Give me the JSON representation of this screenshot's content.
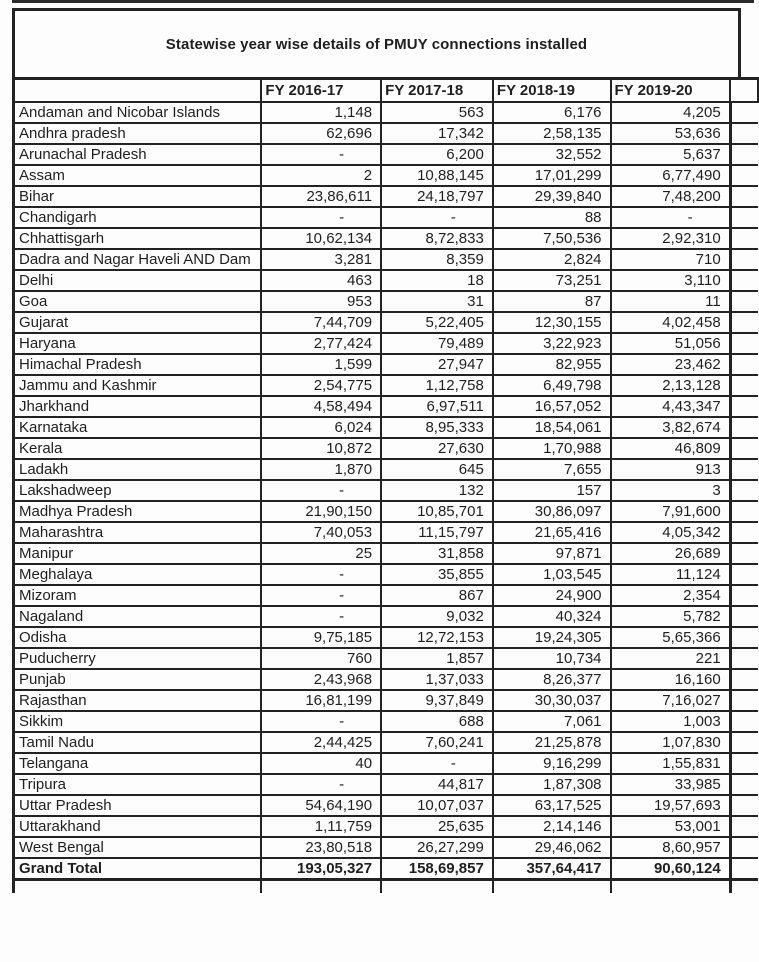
{
  "title": "Statewise year wise details of PMUY connections installed",
  "chart_data": {
    "type": "table",
    "title": "Statewise year wise details of PMUY connections installed",
    "columns": [
      "FY 2016-17",
      "FY 2017-18",
      "FY 2018-19",
      "FY 2019-20"
    ],
    "rows": [
      [
        "Andaman and Nicobar Islands",
        "1,148",
        "563",
        "6,176",
        "4,205"
      ],
      [
        "Andhra pradesh",
        "62,696",
        "17,342",
        "2,58,135",
        "53,636"
      ],
      [
        "Arunachal Pradesh",
        "-",
        "6,200",
        "32,552",
        "5,637"
      ],
      [
        "Assam",
        "2",
        "10,88,145",
        "17,01,299",
        "6,77,490"
      ],
      [
        "Bihar",
        "23,86,611",
        "24,18,797",
        "29,39,840",
        "7,48,200"
      ],
      [
        "Chandigarh",
        "-",
        "-",
        "88",
        "-"
      ],
      [
        "Chhattisgarh",
        "10,62,134",
        "8,72,833",
        "7,50,536",
        "2,92,310"
      ],
      [
        "Dadra and  Nagar Haveli AND Dam",
        "3,281",
        "8,359",
        "2,824",
        "710"
      ],
      [
        "Delhi",
        "463",
        "18",
        "73,251",
        "3,110"
      ],
      [
        "Goa",
        "953",
        "31",
        "87",
        "11"
      ],
      [
        "Gujarat",
        "7,44,709",
        "5,22,405",
        "12,30,155",
        "4,02,458"
      ],
      [
        "Haryana",
        "2,77,424",
        "79,489",
        "3,22,923",
        "51,056"
      ],
      [
        "Himachal Pradesh",
        "1,599",
        "27,947",
        "82,955",
        "23,462"
      ],
      [
        "Jammu and Kashmir",
        "2,54,775",
        "1,12,758",
        "6,49,798",
        "2,13,128"
      ],
      [
        "Jharkhand",
        "4,58,494",
        "6,97,511",
        "16,57,052",
        "4,43,347"
      ],
      [
        "Karnataka",
        "6,024",
        "8,95,333",
        "18,54,061",
        "3,82,674"
      ],
      [
        "Kerala",
        "10,872",
        "27,630",
        "1,70,988",
        "46,809"
      ],
      [
        "Ladakh",
        "1,870",
        "645",
        "7,655",
        "913"
      ],
      [
        "Lakshadweep",
        "-",
        "132",
        "157",
        "3"
      ],
      [
        "Madhya Pradesh",
        "21,90,150",
        "10,85,701",
        "30,86,097",
        "7,91,600"
      ],
      [
        "Maharashtra",
        "7,40,053",
        "11,15,797",
        "21,65,416",
        "4,05,342"
      ],
      [
        "Manipur",
        "25",
        "31,858",
        "97,871",
        "26,689"
      ],
      [
        "Meghalaya",
        "-",
        "35,855",
        "1,03,545",
        "11,124"
      ],
      [
        "Mizoram",
        "-",
        "867",
        "24,900",
        "2,354"
      ],
      [
        "Nagaland",
        "-",
        "9,032",
        "40,324",
        "5,782"
      ],
      [
        "Odisha",
        "9,75,185",
        "12,72,153",
        "19,24,305",
        "5,65,366"
      ],
      [
        "Puducherry",
        "760",
        "1,857",
        "10,734",
        "221"
      ],
      [
        "Punjab",
        "2,43,968",
        "1,37,033",
        "8,26,377",
        "16,160"
      ],
      [
        "Rajasthan",
        "16,81,199",
        "9,37,849",
        "30,30,037",
        "7,16,027"
      ],
      [
        "Sikkim",
        "-",
        "688",
        "7,061",
        "1,003"
      ],
      [
        "Tamil Nadu",
        "2,44,425",
        "7,60,241",
        "21,25,878",
        "1,07,830"
      ],
      [
        "Telangana",
        "40",
        "-",
        "9,16,299",
        "1,55,831"
      ],
      [
        "Tripura",
        "-",
        "44,817",
        "1,87,308",
        "33,985"
      ],
      [
        "Uttar Pradesh",
        "54,64,190",
        "10,07,037",
        "63,17,525",
        "19,57,693"
      ],
      [
        "Uttarakhand",
        "1,11,759",
        "25,635",
        "2,14,146",
        "53,001"
      ],
      [
        "West Bengal",
        "23,80,518",
        "26,27,299",
        "29,46,062",
        "8,60,957"
      ]
    ],
    "grand_total": [
      "Grand Total",
      "193,05,327",
      "158,69,857",
      "357,64,417",
      "90,60,124"
    ]
  }
}
